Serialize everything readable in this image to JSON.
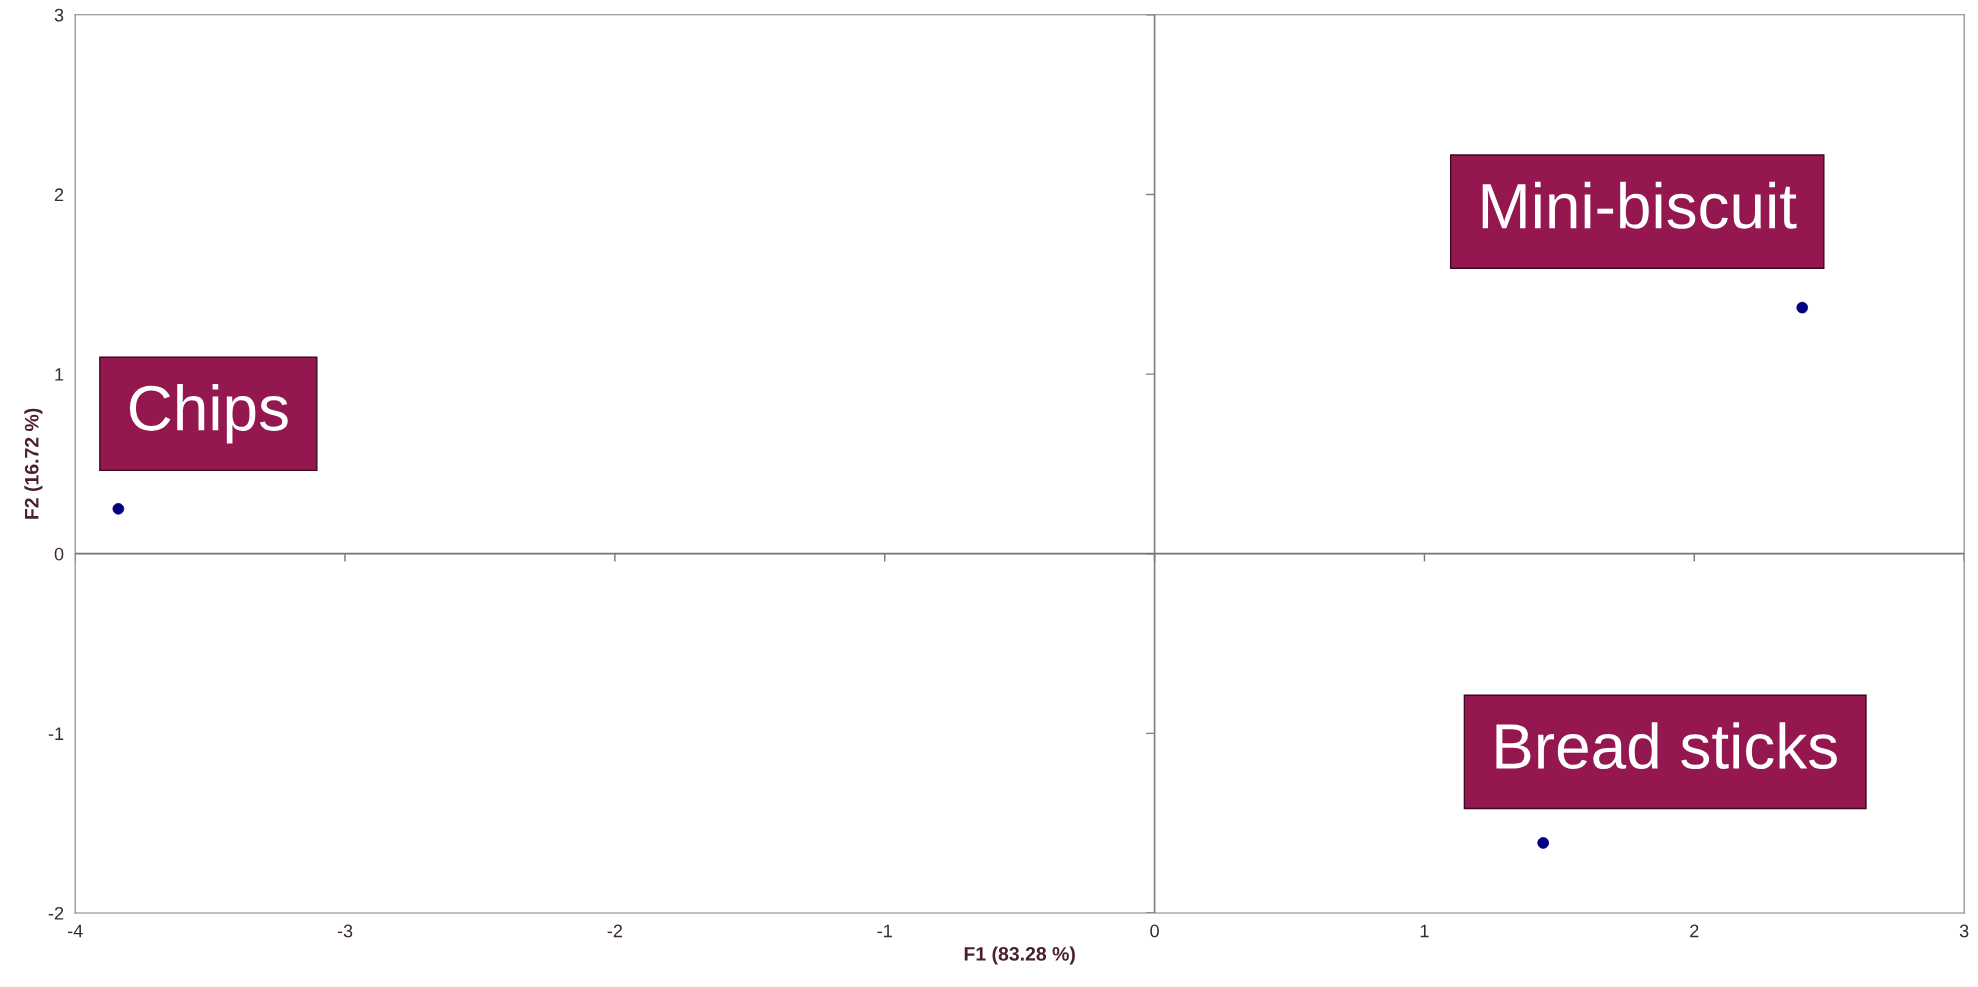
{
  "chart_data": {
    "type": "scatter",
    "xlabel": "F1 (83.28 %)",
    "ylabel": "F2 (16.72 %)",
    "x": [
      -3.84,
      2.4,
      1.44
    ],
    "values": [
      0.25,
      1.37,
      -1.61
    ],
    "color": "#000080",
    "marker": "circle",
    "xlim": [
      -4,
      3
    ],
    "ylim": [
      -2,
      3
    ],
    "xticks": [
      -4,
      -3,
      -2,
      -1,
      0,
      1,
      2,
      3
    ],
    "yticks": [
      -2,
      -1,
      0,
      1,
      2,
      3
    ],
    "grid": false,
    "legend": false,
    "ref_lines": [
      {
        "axis": "x",
        "value": 0,
        "color": "#808080"
      },
      {
        "axis": "y",
        "value": 0,
        "color": "#767676"
      }
    ],
    "annotations": [
      {
        "text": "Chips",
        "x": -3.84,
        "y": 0.25
      },
      {
        "text": "Mini-biscuit",
        "x": 2.4,
        "y": 1.37
      },
      {
        "text": "Bread sticks",
        "x": 1.44,
        "y": -1.61
      }
    ]
  }
}
